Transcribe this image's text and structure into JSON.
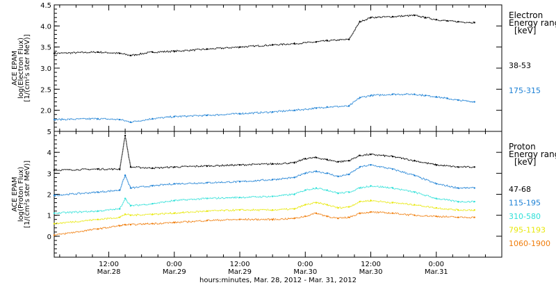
{
  "chart_data": {
    "type": "line",
    "xlabel": "hours:minutes, Mar. 28, 2012 - Mar. 31, 2012",
    "x_ticks": [
      {
        "time": "12:00",
        "date": "Mar.28",
        "hours": 12
      },
      {
        "time": "0:00",
        "date": "Mar.29",
        "hours": 24
      },
      {
        "time": "12:00",
        "date": "Mar.29",
        "hours": 36
      },
      {
        "time": "0:00",
        "date": "Mar.30",
        "hours": 48
      },
      {
        "time": "12:00",
        "date": "Mar.30",
        "hours": 60
      },
      {
        "time": "0:00",
        "date": "Mar.31",
        "hours": 72
      }
    ],
    "x_range_hours": [
      2,
      84
    ],
    "panels": [
      {
        "id": "electron",
        "ylabel_lines": [
          "ACE EPAM",
          "log(Electron Flux)",
          "[1/(cm²s ster MeV)]"
        ],
        "ylim": [
          1.5,
          4.5
        ],
        "y_ticks": [
          "2.0",
          "2.5",
          "3.0",
          "3.5",
          "4.0",
          "4.5"
        ],
        "legend_title": [
          "Electron",
          "Energy ranges",
          "[keV]"
        ],
        "series": [
          {
            "name": "38-53",
            "color": "#000000",
            "x": [
              2,
              10,
              14,
              16,
              20,
              24,
              30,
              36,
              42,
              46,
              50,
              52,
              56,
              58,
              60,
              64,
              68,
              70,
              72,
              74,
              76,
              79
            ],
            "y": [
              3.35,
              3.38,
              3.35,
              3.3,
              3.38,
              3.4,
              3.45,
              3.5,
              3.55,
              3.58,
              3.62,
              3.65,
              3.68,
              4.1,
              4.2,
              4.22,
              4.25,
              4.2,
              4.15,
              4.12,
              4.1,
              4.08
            ]
          },
          {
            "name": "175-315",
            "color": "#1a7fd4",
            "x": [
              2,
              10,
              14,
              16,
              20,
              24,
              30,
              36,
              42,
              46,
              50,
              52,
              56,
              58,
              60,
              64,
              68,
              70,
              72,
              74,
              76,
              79
            ],
            "y": [
              1.78,
              1.8,
              1.78,
              1.72,
              1.8,
              1.85,
              1.88,
              1.92,
              1.96,
              2.0,
              2.05,
              2.08,
              2.1,
              2.3,
              2.35,
              2.38,
              2.38,
              2.35,
              2.32,
              2.28,
              2.24,
              2.2
            ]
          }
        ]
      },
      {
        "id": "proton",
        "ylabel_lines": [
          "ACE EPAM",
          "log(Proton Flux)",
          "[1/(cm²s ster MeV)]"
        ],
        "ylim": [
          -1,
          5
        ],
        "y_ticks": [
          "0",
          "1",
          "2",
          "3",
          "4",
          "5"
        ],
        "legend_title": [
          "Proton",
          "Energy ranges",
          "[keV]"
        ],
        "series": [
          {
            "name": "47-68",
            "color": "#000000",
            "x": [
              2,
              10,
              14,
              15,
              16,
              20,
              24,
              30,
              36,
              42,
              46,
              48,
              50,
              52,
              54,
              56,
              58,
              60,
              64,
              68,
              72,
              76,
              79
            ],
            "y": [
              3.15,
              3.2,
              3.2,
              4.8,
              3.3,
              3.25,
              3.3,
              3.35,
              3.4,
              3.45,
              3.5,
              3.7,
              3.75,
              3.65,
              3.55,
              3.6,
              3.85,
              3.9,
              3.8,
              3.6,
              3.4,
              3.3,
              3.3
            ]
          },
          {
            "name": "115-195",
            "color": "#1a7fd4",
            "x": [
              2,
              10,
              14,
              15,
              16,
              20,
              24,
              30,
              36,
              42,
              46,
              48,
              50,
              52,
              54,
              56,
              58,
              60,
              64,
              68,
              72,
              76,
              79
            ],
            "y": [
              1.95,
              2.1,
              2.2,
              2.9,
              2.3,
              2.4,
              2.5,
              2.55,
              2.6,
              2.7,
              2.8,
              3.0,
              3.1,
              3.0,
              2.85,
              2.95,
              3.3,
              3.4,
              3.2,
              2.9,
              2.5,
              2.3,
              2.3
            ]
          },
          {
            "name": "310-580",
            "color": "#2ee0d8",
            "x": [
              2,
              10,
              14,
              15,
              16,
              20,
              24,
              30,
              36,
              42,
              46,
              48,
              50,
              52,
              54,
              56,
              58,
              60,
              64,
              68,
              72,
              76,
              79
            ],
            "y": [
              1.1,
              1.2,
              1.3,
              1.8,
              1.45,
              1.55,
              1.7,
              1.8,
              1.85,
              1.9,
              2.0,
              2.2,
              2.3,
              2.2,
              2.05,
              2.1,
              2.3,
              2.4,
              2.3,
              2.1,
              1.8,
              1.65,
              1.65
            ]
          },
          {
            "name": "795-1193",
            "color": "#e8e80a",
            "x": [
              2,
              10,
              14,
              15,
              16,
              20,
              24,
              30,
              36,
              42,
              46,
              48,
              50,
              52,
              54,
              56,
              58,
              60,
              64,
              68,
              72,
              76,
              79
            ],
            "y": [
              0.6,
              0.8,
              0.9,
              1.05,
              1.0,
              1.05,
              1.1,
              1.2,
              1.25,
              1.25,
              1.3,
              1.5,
              1.6,
              1.5,
              1.35,
              1.4,
              1.65,
              1.7,
              1.6,
              1.5,
              1.35,
              1.25,
              1.25
            ]
          },
          {
            "name": "1060-1900",
            "color": "#f07c0a",
            "x": [
              2,
              10,
              14,
              15,
              16,
              20,
              24,
              30,
              36,
              42,
              46,
              48,
              50,
              52,
              54,
              56,
              58,
              60,
              64,
              68,
              72,
              76,
              79
            ],
            "y": [
              0.05,
              0.35,
              0.5,
              0.55,
              0.55,
              0.6,
              0.65,
              0.75,
              0.8,
              0.8,
              0.85,
              0.95,
              1.1,
              0.95,
              0.85,
              0.9,
              1.1,
              1.15,
              1.1,
              1.0,
              0.95,
              0.9,
              0.9
            ]
          }
        ]
      }
    ]
  }
}
